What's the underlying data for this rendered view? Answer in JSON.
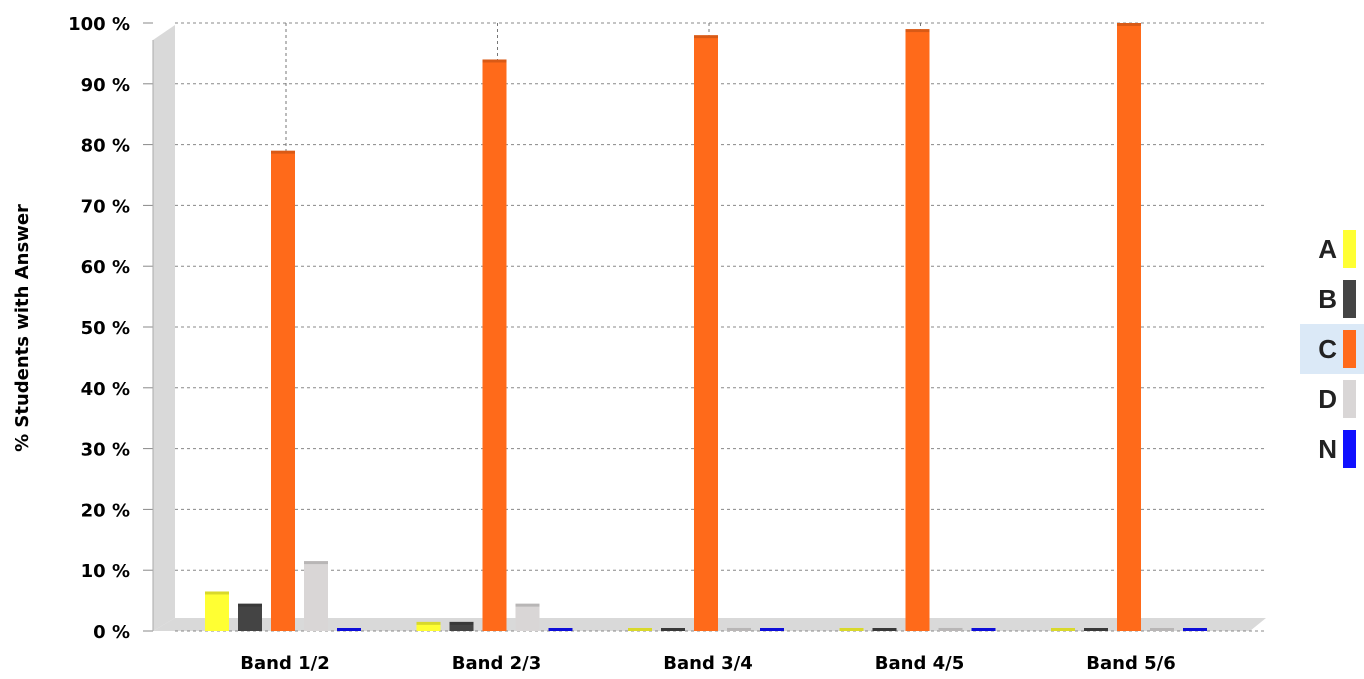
{
  "chart_data": {
    "type": "bar",
    "ylabel": "% Students with Answer",
    "xlabel": "",
    "ylim": [
      0,
      100
    ],
    "y_ticks": [
      "0 %",
      "10 %",
      "20 %",
      "30 %",
      "40 %",
      "50 %",
      "60 %",
      "70 %",
      "80 %",
      "90 %",
      "100 %"
    ],
    "grid": true,
    "legend_position": "right",
    "categories": [
      "Band 1/2",
      "Band 2/3",
      "Band 3/4",
      "Band 4/5",
      "Band 5/6"
    ],
    "series": [
      {
        "name": "A",
        "color": "#ffff33",
        "values": [
          6.5,
          1.5,
          0,
          0,
          0
        ]
      },
      {
        "name": "B",
        "color": "#444444",
        "values": [
          4.5,
          1.5,
          0,
          0,
          0
        ]
      },
      {
        "name": "C",
        "color": "#ff6a1a",
        "values": [
          79,
          94,
          98,
          99,
          100
        ]
      },
      {
        "name": "D",
        "color": "#d9d6d6",
        "values": [
          11.5,
          4.5,
          0.5,
          0.5,
          0
        ]
      },
      {
        "name": "N",
        "color": "#1010ff",
        "values": [
          0,
          0,
          0,
          0,
          0
        ]
      }
    ],
    "legend_highlight": "C"
  }
}
